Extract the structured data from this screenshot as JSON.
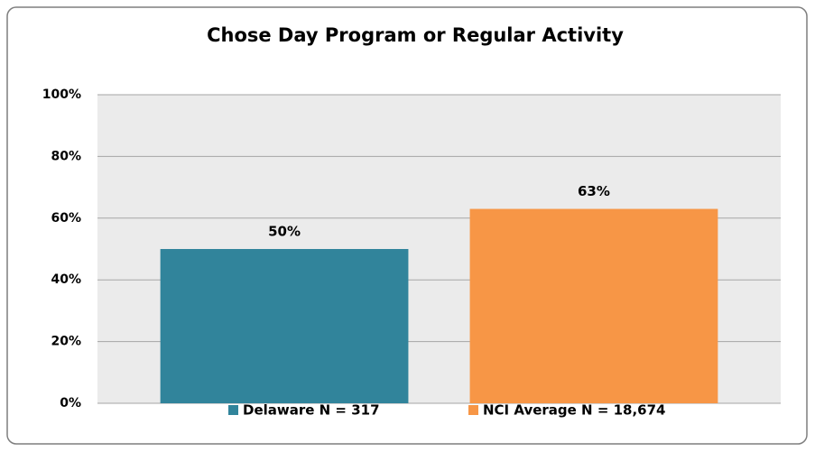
{
  "chart_data": {
    "type": "bar",
    "title": "Chose Day Program or Regular Activity",
    "categories": [
      null
    ],
    "series": [
      {
        "name": "Delaware N = 317",
        "color": "#31849b",
        "values": [
          50
        ],
        "value_labels": [
          "50%"
        ]
      },
      {
        "name": "NCI Average N = 18,674",
        "color": "#f79646",
        "values": [
          63
        ],
        "value_labels": [
          "63%"
        ]
      }
    ],
    "ylim": [
      0,
      100
    ],
    "yticks": [
      {
        "value": 0,
        "label": "0%"
      },
      {
        "value": 20,
        "label": "20%"
      },
      {
        "value": 40,
        "label": "40%"
      },
      {
        "value": 60,
        "label": "60%"
      },
      {
        "value": 80,
        "label": "80%"
      },
      {
        "value": 100,
        "label": "100%"
      }
    ],
    "grid": true,
    "legend": "bottom"
  }
}
